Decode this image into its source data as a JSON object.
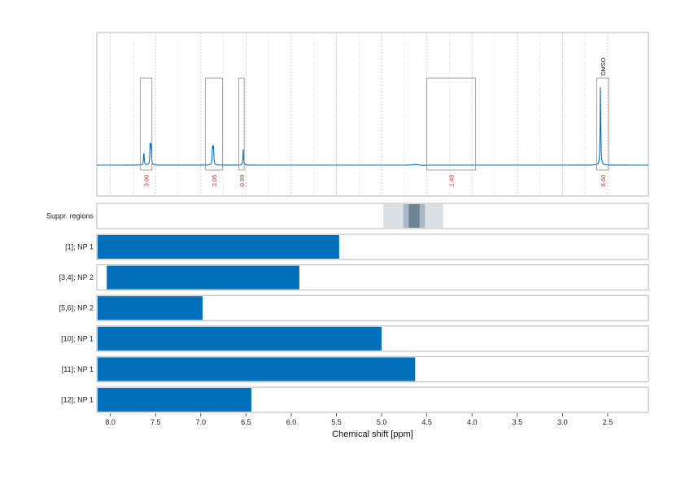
{
  "chart_data": {
    "type": "line",
    "xlabel": "Chemical shift [ppm]",
    "x_reversed": true,
    "xlim": [
      8.15,
      2.05
    ],
    "x_ticks": [
      8.0,
      7.5,
      7.0,
      6.5,
      6.0,
      5.5,
      5.0,
      4.5,
      4.0,
      3.5,
      3.0,
      2.5
    ],
    "x_tick_labels": [
      "8.0",
      "7.5",
      "7.0",
      "6.5",
      "6.0",
      "5.5",
      "5.0",
      "4.5",
      "4.0",
      "3.5",
      "3.0",
      "2.5"
    ],
    "grid": "dashed vertical",
    "spectrum": {
      "color": "#0d6fb8",
      "peaks": [
        {
          "x": 7.63,
          "height": 0.17
        },
        {
          "x": 7.56,
          "height": 0.24
        },
        {
          "x": 7.55,
          "height": 0.25
        },
        {
          "x": 6.87,
          "height": 0.24
        },
        {
          "x": 6.86,
          "height": 0.22
        },
        {
          "x": 6.53,
          "height": 0.19
        },
        {
          "x": 2.58,
          "height": 0.96
        }
      ]
    },
    "integrals": [
      {
        "from": 7.67,
        "to": 7.54,
        "value": "3.00"
      },
      {
        "from": 6.95,
        "to": 6.76,
        "value": "2.05"
      },
      {
        "from": 6.58,
        "to": 6.52,
        "value": "0.99"
      },
      {
        "from": 4.5,
        "to": 3.96,
        "value": "1.49"
      },
      {
        "from": 2.62,
        "to": 2.49,
        "value": "6.60",
        "annotation": "DMSO"
      }
    ],
    "suppressed_regions": {
      "label": "Suppr. regions",
      "bands": [
        {
          "from": 4.98,
          "to": 4.32,
          "shade": "#d9e0e6"
        },
        {
          "from": 4.76,
          "to": 4.52,
          "shade": "#a8b7c3"
        },
        {
          "from": 4.7,
          "to": 4.58,
          "shade": "#6d8494"
        }
      ]
    },
    "bars": [
      {
        "label": "[1]; NP 1",
        "start": 8.15,
        "end": 5.47
      },
      {
        "label": "[3,4]; NP 2",
        "start": 8.04,
        "end": 5.91
      },
      {
        "label": "[5,6]; NP 2",
        "start": 8.15,
        "end": 6.98
      },
      {
        "label": "[10]; NP 1",
        "start": 8.15,
        "end": 5.0
      },
      {
        "label": "[11]; NP 1",
        "start": 8.15,
        "end": 4.63
      },
      {
        "label": "[12]; NP 1",
        "start": 8.15,
        "end": 6.44
      }
    ],
    "bar_color": "#0070bb"
  }
}
